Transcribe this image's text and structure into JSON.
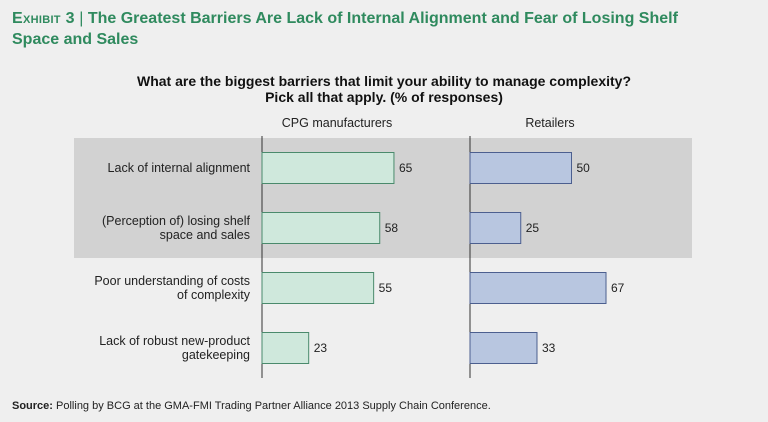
{
  "exhibit": {
    "label": "Exhibit 3",
    "separator": "|",
    "title_line1": "The Greatest Barriers Are Lack of Internal Alignment and Fear of Losing Shelf",
    "title_line2": "Space and Sales"
  },
  "question": {
    "line1": "What are the biggest barriers that limit your ability to manage complexity?",
    "line2": "Pick all that apply. (% of responses)"
  },
  "source": {
    "label": "Source:",
    "text": "Polling by BCG at the GMA-FMI Trading Partner Alliance 2013 Supply Chain Conference."
  },
  "colors": {
    "cpg_fill": "#cfe8dc",
    "cpg_stroke": "#4a8a6c",
    "retail_fill": "#b8c6e0",
    "retail_stroke": "#4c5f8f",
    "highlight": "#d2d2d2"
  },
  "chart_data": {
    "type": "bar",
    "orientation": "horizontal",
    "title": "What are the biggest barriers that limit your ability to manage complexity? Pick all that apply. (% of responses)",
    "categories": [
      [
        "Lack of internal alignment"
      ],
      [
        "(Perception of) losing shelf",
        "space and sales"
      ],
      [
        "Poor understanding of costs",
        "of complexity"
      ],
      [
        "Lack of robust new-product",
        "gatekeeping"
      ]
    ],
    "series": [
      {
        "name": "CPG manufacturers",
        "values": [
          65,
          58,
          55,
          23
        ]
      },
      {
        "name": "Retailers",
        "values": [
          50,
          25,
          67,
          33
        ]
      }
    ],
    "highlighted_categories": [
      0,
      1
    ],
    "xlim": [
      0,
      100
    ]
  }
}
